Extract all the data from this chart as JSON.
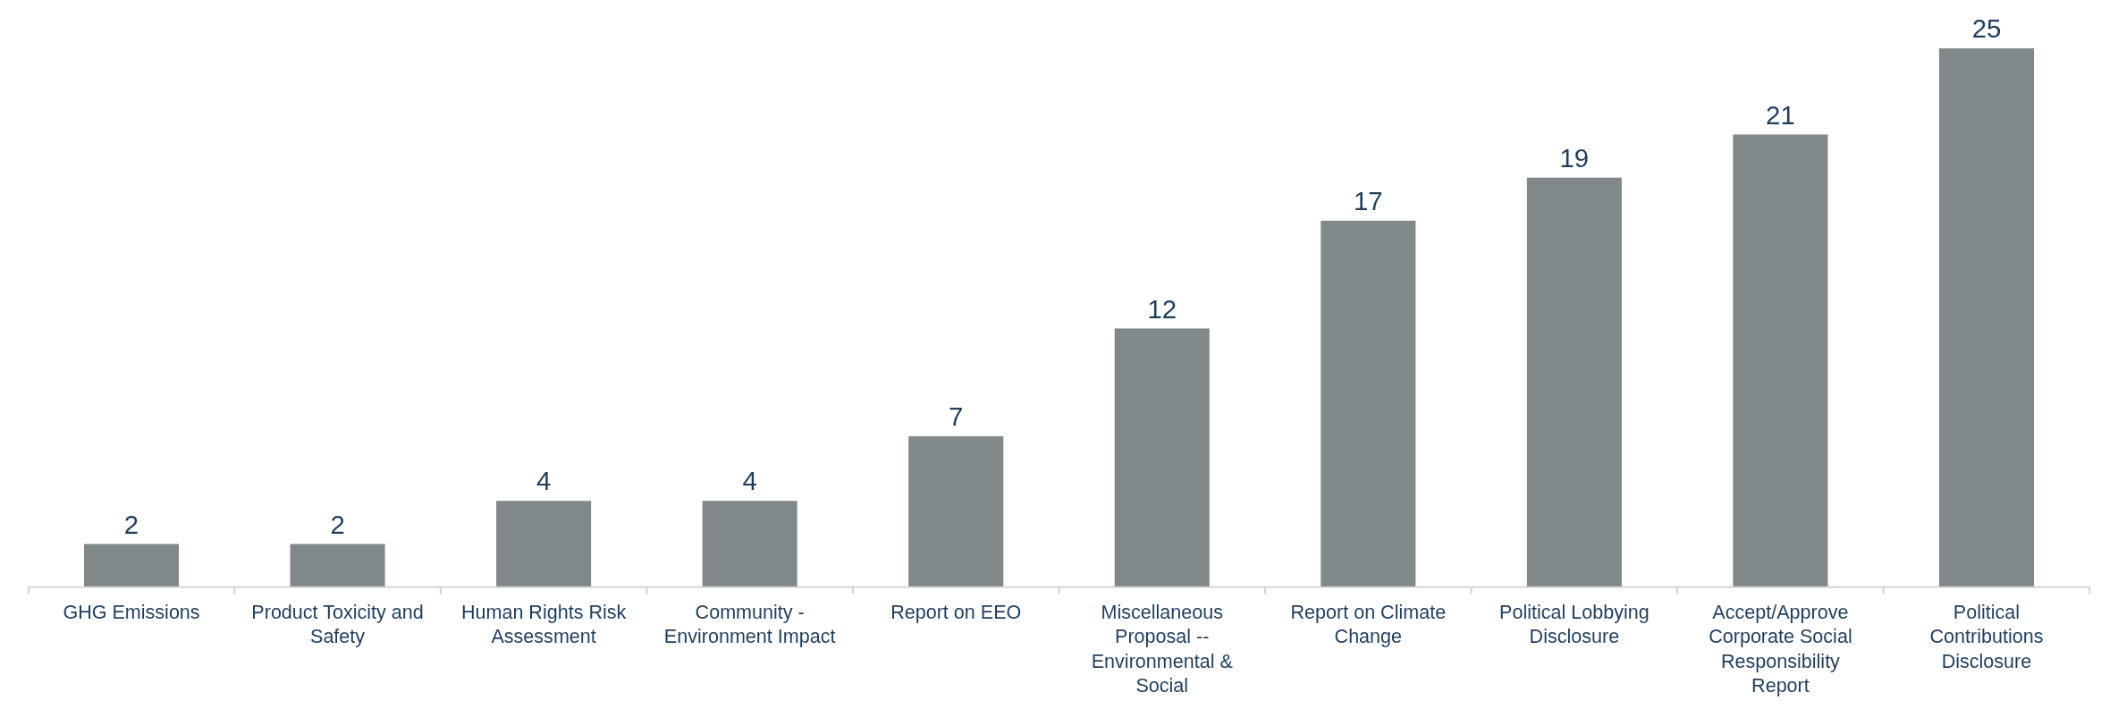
{
  "chart_data": {
    "type": "bar",
    "categories": [
      "GHG Emissions",
      "Product Toxicity and Safety",
      "Human Rights Risk Assessment",
      "Community - Environment Impact",
      "Report on EEO",
      "Miscellaneous Proposal -- Environmental & Social",
      "Report on Climate Change",
      "Political Lobbying Disclosure",
      "Accept/Approve Corporate Social Responsibility Report",
      "Political Contributions Disclosure"
    ],
    "values": [
      2,
      2,
      4,
      4,
      7,
      12,
      17,
      19,
      21,
      25
    ],
    "color": "#808889",
    "data_labels": true
  }
}
